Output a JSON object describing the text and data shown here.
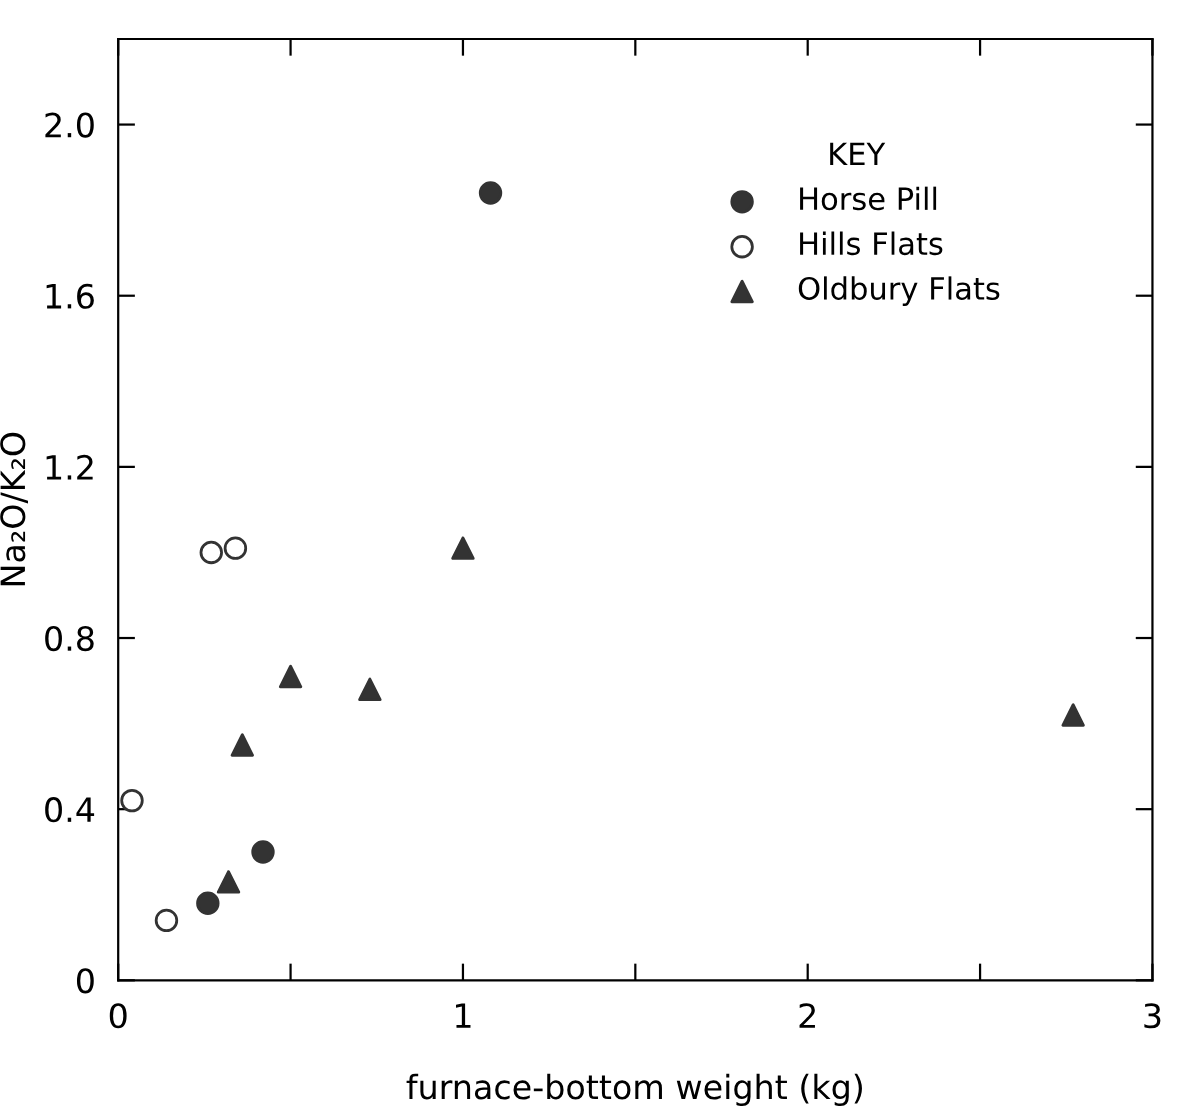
{
  "chart_data": {
    "type": "scatter",
    "xlabel": "furnace-bottom weight (kg)",
    "ylabel": "Na₂O/K₂O",
    "legend_title": "KEY",
    "legend": "top right",
    "grid": false,
    "xlim": [
      0,
      3
    ],
    "ylim": [
      0,
      2.2
    ],
    "xticks": [
      0,
      {
        "value": 0.5,
        "label": null
      },
      1,
      {
        "value": 1.5,
        "label": null
      },
      2,
      {
        "value": 2.5,
        "label": null
      },
      3
    ],
    "yticks": [
      0,
      0.4,
      0.8,
      1.2,
      1.6,
      {
        "value": 2,
        "label": "2.0"
      }
    ],
    "series": [
      {
        "name": "Horse Pill",
        "color": "#333333",
        "marker": "circle",
        "x": [
          1.08,
          0.42,
          0.26
        ],
        "values": [
          1.84,
          0.3,
          0.18
        ]
      },
      {
        "name": "Hills Flats",
        "color": "#ffffff",
        "marker": "circle",
        "x": [
          0.04,
          0.14,
          0.27,
          0.34
        ],
        "values": [
          0.42,
          0.14,
          1.0,
          1.01
        ]
      },
      {
        "name": "Oldbury Flats",
        "color": "#333333",
        "marker": "triangle",
        "x": [
          1.0,
          0.5,
          0.73,
          0.36,
          0.32,
          2.77
        ],
        "values": [
          1.01,
          0.71,
          0.68,
          0.55,
          0.23,
          0.62
        ]
      }
    ]
  }
}
